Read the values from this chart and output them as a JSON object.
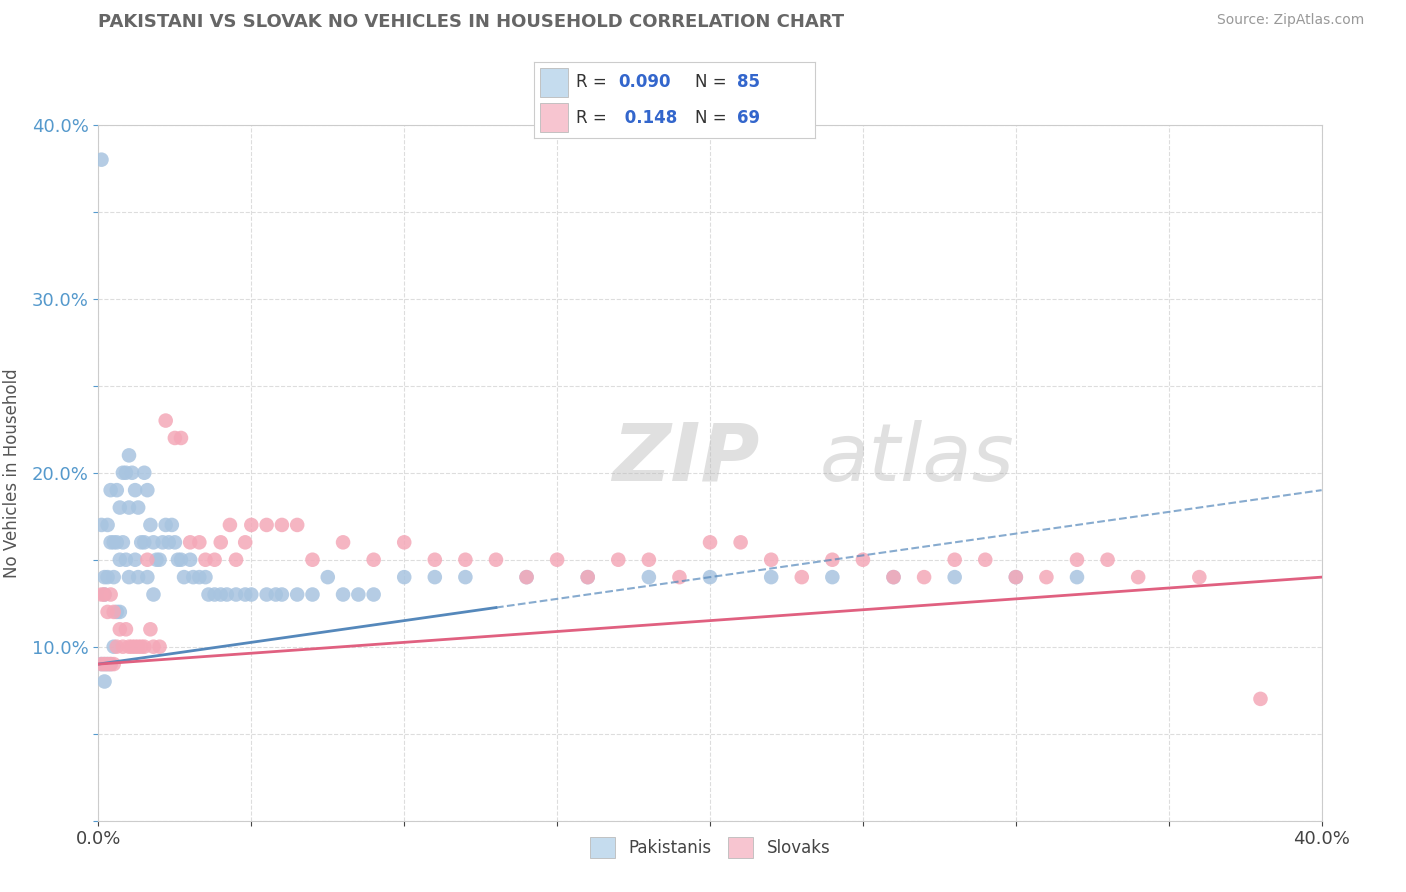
{
  "title": "PAKISTANI VS SLOVAK NO VEHICLES IN HOUSEHOLD CORRELATION CHART",
  "source": "Source: ZipAtlas.com",
  "ylabel": "No Vehicles in Household",
  "xlim": [
    0.0,
    0.4
  ],
  "ylim": [
    0.0,
    0.4
  ],
  "xticks": [
    0.0,
    0.05,
    0.1,
    0.15,
    0.2,
    0.25,
    0.3,
    0.35,
    0.4
  ],
  "yticks": [
    0.0,
    0.05,
    0.1,
    0.15,
    0.2,
    0.25,
    0.3,
    0.35,
    0.4
  ],
  "pakistani_color": "#a8c4e0",
  "slovak_color": "#f4a8b8",
  "pakistani_line_color": "#5588bb",
  "slovak_line_color": "#e06080",
  "legend_box_color_pakistani": "#c5dcee",
  "legend_box_color_slovak": "#f7c5d0",
  "R_pakistani": 0.09,
  "N_pakistani": 85,
  "R_slovak": 0.148,
  "N_slovak": 69,
  "pakistani_x": [
    0.001,
    0.001,
    0.001,
    0.002,
    0.002,
    0.002,
    0.002,
    0.003,
    0.003,
    0.003,
    0.004,
    0.004,
    0.004,
    0.005,
    0.005,
    0.005,
    0.006,
    0.006,
    0.006,
    0.007,
    0.007,
    0.007,
    0.008,
    0.008,
    0.009,
    0.009,
    0.01,
    0.01,
    0.01,
    0.011,
    0.012,
    0.012,
    0.013,
    0.013,
    0.014,
    0.015,
    0.015,
    0.016,
    0.016,
    0.017,
    0.018,
    0.018,
    0.019,
    0.02,
    0.021,
    0.022,
    0.023,
    0.024,
    0.025,
    0.026,
    0.027,
    0.028,
    0.03,
    0.031,
    0.033,
    0.035,
    0.036,
    0.038,
    0.04,
    0.042,
    0.045,
    0.048,
    0.05,
    0.055,
    0.058,
    0.06,
    0.065,
    0.07,
    0.075,
    0.08,
    0.085,
    0.09,
    0.1,
    0.11,
    0.12,
    0.14,
    0.16,
    0.18,
    0.2,
    0.22,
    0.24,
    0.26,
    0.28,
    0.3,
    0.32
  ],
  "pakistani_y": [
    0.38,
    0.17,
    0.09,
    0.14,
    0.13,
    0.09,
    0.08,
    0.17,
    0.14,
    0.09,
    0.19,
    0.16,
    0.09,
    0.16,
    0.14,
    0.1,
    0.19,
    0.16,
    0.12,
    0.18,
    0.15,
    0.12,
    0.2,
    0.16,
    0.2,
    0.15,
    0.21,
    0.18,
    0.14,
    0.2,
    0.19,
    0.15,
    0.18,
    0.14,
    0.16,
    0.2,
    0.16,
    0.19,
    0.14,
    0.17,
    0.16,
    0.13,
    0.15,
    0.15,
    0.16,
    0.17,
    0.16,
    0.17,
    0.16,
    0.15,
    0.15,
    0.14,
    0.15,
    0.14,
    0.14,
    0.14,
    0.13,
    0.13,
    0.13,
    0.13,
    0.13,
    0.13,
    0.13,
    0.13,
    0.13,
    0.13,
    0.13,
    0.13,
    0.14,
    0.13,
    0.13,
    0.13,
    0.14,
    0.14,
    0.14,
    0.14,
    0.14,
    0.14,
    0.14,
    0.14,
    0.14,
    0.14,
    0.14,
    0.14,
    0.14
  ],
  "slovak_x": [
    0.001,
    0.001,
    0.002,
    0.002,
    0.003,
    0.003,
    0.004,
    0.004,
    0.005,
    0.005,
    0.006,
    0.007,
    0.008,
    0.009,
    0.01,
    0.011,
    0.012,
    0.013,
    0.014,
    0.015,
    0.016,
    0.017,
    0.018,
    0.02,
    0.022,
    0.025,
    0.027,
    0.03,
    0.033,
    0.035,
    0.038,
    0.04,
    0.043,
    0.045,
    0.048,
    0.05,
    0.055,
    0.06,
    0.065,
    0.07,
    0.08,
    0.09,
    0.1,
    0.11,
    0.12,
    0.13,
    0.14,
    0.15,
    0.16,
    0.17,
    0.18,
    0.19,
    0.2,
    0.21,
    0.22,
    0.23,
    0.24,
    0.25,
    0.26,
    0.27,
    0.28,
    0.29,
    0.3,
    0.31,
    0.32,
    0.33,
    0.34,
    0.36,
    0.38
  ],
  "slovak_y": [
    0.13,
    0.09,
    0.13,
    0.09,
    0.12,
    0.09,
    0.13,
    0.09,
    0.12,
    0.09,
    0.1,
    0.11,
    0.1,
    0.11,
    0.1,
    0.1,
    0.1,
    0.1,
    0.1,
    0.1,
    0.15,
    0.11,
    0.1,
    0.1,
    0.23,
    0.22,
    0.22,
    0.16,
    0.16,
    0.15,
    0.15,
    0.16,
    0.17,
    0.15,
    0.16,
    0.17,
    0.17,
    0.17,
    0.17,
    0.15,
    0.16,
    0.15,
    0.16,
    0.15,
    0.15,
    0.15,
    0.14,
    0.15,
    0.14,
    0.15,
    0.15,
    0.14,
    0.16,
    0.16,
    0.15,
    0.14,
    0.15,
    0.15,
    0.14,
    0.14,
    0.15,
    0.15,
    0.14,
    0.14,
    0.15,
    0.15,
    0.14,
    0.14,
    0.07
  ]
}
